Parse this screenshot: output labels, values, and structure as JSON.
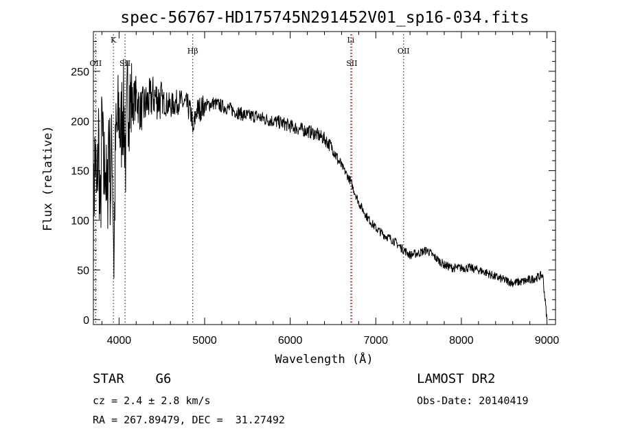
{
  "chart_data": {
    "type": "line",
    "title": "spec-56767-HD175745N291452V01_sp16-034.fits",
    "xlabel": "Wavelength (Å)",
    "ylabel": "Flux (relative)",
    "xlim": [
      3700,
      9100
    ],
    "ylim": [
      -5,
      290
    ],
    "x_ticks": [
      4000,
      5000,
      6000,
      7000,
      8000,
      9000
    ],
    "y_ticks": [
      0,
      50,
      100,
      150,
      200,
      250
    ],
    "grid": false,
    "series": [
      {
        "x": [
          3700,
          3720,
          3740,
          3760,
          3780,
          3800,
          3820,
          3840,
          3860,
          3880,
          3900,
          3920,
          3940,
          3960,
          3980,
          4000,
          4020,
          4040,
          4060,
          4080,
          4100,
          4150,
          4200,
          4250,
          4300,
          4350,
          4400,
          4500,
          4600,
          4700,
          4800,
          4850,
          4861,
          4900,
          5000,
          5100,
          5200,
          5300,
          5400,
          5500,
          5600,
          5700,
          5800,
          5900,
          6000,
          6100,
          6200,
          6300,
          6400,
          6500,
          6563,
          6600,
          6700,
          6800,
          6900,
          7000,
          7100,
          7200,
          7300,
          7400,
          7500,
          7600,
          7700,
          7800,
          7900,
          8000,
          8100,
          8200,
          8300,
          8400,
          8500,
          8600,
          8700,
          8800,
          8900,
          8950,
          9000
        ],
        "y": [
          95,
          175,
          110,
          190,
          90,
          200,
          140,
          170,
          100,
          200,
          130,
          180,
          60,
          175,
          190,
          210,
          180,
          220,
          200,
          160,
          230,
          215,
          225,
          210,
          215,
          220,
          225,
          220,
          215,
          220,
          215,
          205,
          185,
          210,
          215,
          218,
          215,
          212,
          208,
          205,
          205,
          202,
          200,
          198,
          195,
          192,
          190,
          187,
          182,
          172,
          160,
          155,
          140,
          118,
          103,
          92,
          85,
          80,
          72,
          65,
          67,
          70,
          62,
          55,
          52,
          52,
          52,
          50,
          47,
          43,
          40,
          37,
          38,
          40,
          43,
          45,
          0
        ]
      }
    ],
    "line_markers": [
      {
        "label": "K",
        "x": 3934,
        "row": "top",
        "color": "#000000"
      },
      {
        "label": "OII",
        "x": 3727,
        "row": "low",
        "color": "#000000"
      },
      {
        "label": "SII",
        "x": 4070,
        "row": "low",
        "color": "#000000"
      },
      {
        "label": "Hβ",
        "x": 4861,
        "row": "mid",
        "color": "#000000"
      },
      {
        "label": "Li",
        "x": 6708,
        "row": "top",
        "color": "#000000"
      },
      {
        "label": "SII",
        "x": 6720,
        "row": "low",
        "color": "#ff0000"
      },
      {
        "label": "OII",
        "x": 7325,
        "row": "mid",
        "color": "#000000"
      }
    ]
  },
  "info": {
    "class_line": "STAR    G6",
    "cz_line": "cz = 2.4 ± 2.8 km/s",
    "radec_line": "RA = 267.89479, DEC =  31.27492",
    "survey": "LAMOST DR2",
    "obs_date": "Obs-Date: 20140419"
  }
}
